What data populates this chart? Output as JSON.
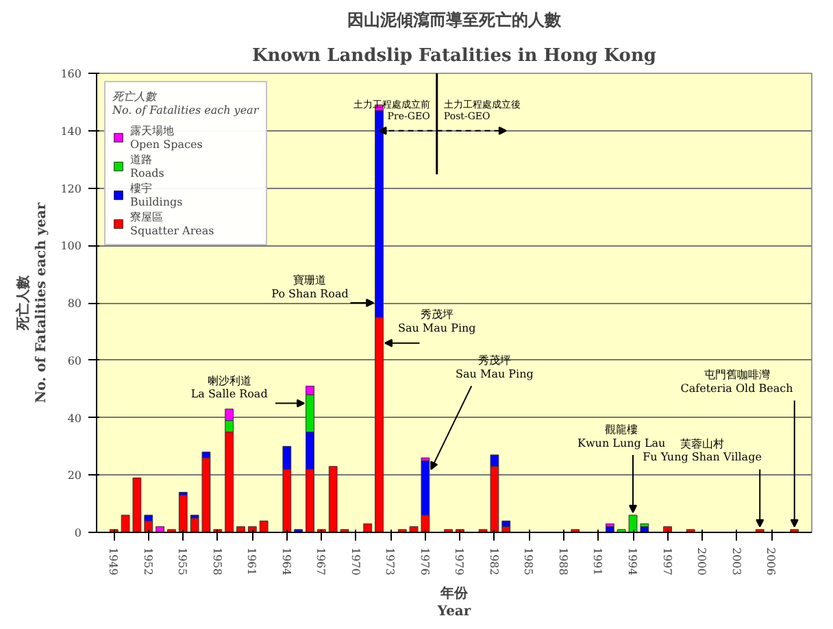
{
  "chart_data": {
    "type": "bar",
    "stacked": true,
    "title": "因山泥傾瀉而導至死亡的人數",
    "subtitle": "Known Landslip Fatalities in Hong Kong",
    "xlabel": "年份\nYear",
    "ylabel": "死亡人數\nNo. of Fatalities each year",
    "legend_title": "死亡人數\nNo. of Fatalities each year",
    "x": [
      1949,
      1950,
      1951,
      1952,
      1953,
      1954,
      1955,
      1956,
      1957,
      1958,
      1959,
      1960,
      1961,
      1962,
      1964,
      1965,
      1966,
      1967,
      1968,
      1969,
      1971,
      1972,
      1974,
      1975,
      1976,
      1978,
      1979,
      1981,
      1982,
      1983,
      1989,
      1992,
      1993,
      1994,
      1995,
      1997,
      1999,
      2005,
      2008
    ],
    "series": [
      {
        "name": "寮屋區\nSquatter Areas",
        "color": "#ff0000",
        "values": [
          1,
          6,
          19,
          4,
          null,
          1,
          13,
          5,
          26,
          1,
          35,
          2,
          2,
          4,
          22,
          null,
          22,
          1,
          23,
          1,
          3,
          75,
          1,
          2,
          6,
          1,
          1,
          1,
          23,
          2,
          1,
          null,
          null,
          null,
          null,
          2,
          1,
          1,
          1
        ]
      },
      {
        "name": "樓宇\nBuildings",
        "color": "#0000ff",
        "values": [
          null,
          null,
          null,
          2,
          null,
          null,
          1,
          1,
          2,
          null,
          null,
          null,
          null,
          null,
          8,
          1,
          13,
          null,
          null,
          null,
          null,
          72,
          null,
          null,
          19,
          null,
          null,
          null,
          4,
          2,
          null,
          2,
          null,
          null,
          2,
          null,
          null,
          null,
          null
        ]
      },
      {
        "name": "道路\nRoads",
        "color": "#00e000",
        "values": [
          null,
          null,
          null,
          null,
          null,
          null,
          null,
          null,
          null,
          null,
          4,
          null,
          null,
          null,
          null,
          null,
          13,
          null,
          null,
          null,
          null,
          null,
          null,
          null,
          null,
          null,
          null,
          null,
          null,
          null,
          null,
          null,
          1,
          6,
          1,
          null,
          null,
          null,
          null
        ]
      },
      {
        "name": "露天場地\nOpen Spaces",
        "color": "#ff00ff",
        "values": [
          null,
          null,
          null,
          null,
          2,
          null,
          null,
          null,
          null,
          null,
          4,
          null,
          null,
          null,
          null,
          null,
          3,
          null,
          null,
          null,
          null,
          2,
          null,
          null,
          1,
          null,
          null,
          null,
          null,
          null,
          null,
          1,
          null,
          null,
          null,
          null,
          null,
          null,
          null
        ]
      }
    ],
    "xlim": [
      1947.5,
      2009.5
    ],
    "xticks": [
      1949,
      1952,
      1955,
      1958,
      1961,
      1964,
      1967,
      1970,
      1973,
      1976,
      1979,
      1982,
      1985,
      1988,
      1991,
      1994,
      1997,
      2000,
      2003,
      2006
    ],
    "ylim": [
      0,
      160
    ],
    "yticks": [
      0,
      20,
      40,
      60,
      80,
      100,
      120,
      140,
      160
    ],
    "grid": "y",
    "legend": "top left",
    "ref_lines": [
      {
        "axis": "x",
        "value": 1977,
        "label": null
      }
    ],
    "annotations": [
      {
        "text": "寶珊道\nPo Shan Road",
        "x": 1972,
        "y": 80
      },
      {
        "text": "秀茂坪\nSau Mau Ping",
        "x": 1972,
        "y": 66
      },
      {
        "text": "秀茂坪\nSau Mau Ping",
        "x": 1976,
        "y": 22
      },
      {
        "text": "喇沙利道\nLa Salle Road",
        "x": 1966,
        "y": 45
      },
      {
        "text": "觀龍樓\nKwun Lung Lau",
        "x": 1994,
        "y": 6
      },
      {
        "text": "芙蓉山村\nFu Yung Shan Village",
        "x": 2005,
        "y": 1
      },
      {
        "text": "屯門舊咖啡灣\nCafeteria Old Beach",
        "x": 2008,
        "y": 1
      },
      "土力工程處成立前\nPre-GEO",
      "土力工程處成立後\nPost-GEO"
    ]
  }
}
